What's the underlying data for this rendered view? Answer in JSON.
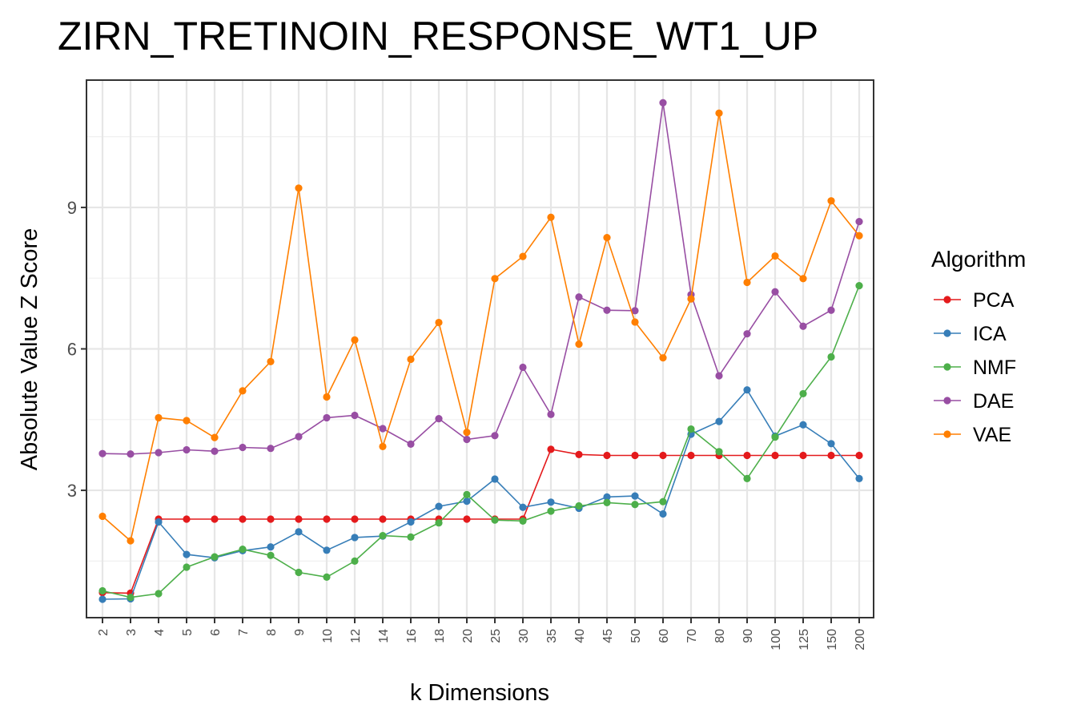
{
  "chart_data": {
    "type": "line",
    "title": "ZIRN_TRETINOIN_RESPONSE_WT1_UP",
    "xlabel": "k Dimensions",
    "ylabel": "Absolute Value Z Score",
    "categories": [
      "2",
      "3",
      "4",
      "5",
      "6",
      "7",
      "8",
      "9",
      "10",
      "12",
      "14",
      "16",
      "18",
      "20",
      "25",
      "30",
      "35",
      "40",
      "45",
      "50",
      "60",
      "70",
      "80",
      "90",
      "100",
      "125",
      "150",
      "200"
    ],
    "ylim": [
      0.3,
      11.7
    ],
    "yticks": [
      3,
      6,
      9
    ],
    "ytick_labels": [
      "3",
      "6",
      "9"
    ],
    "grid": true,
    "legend": {
      "title": "Algorithm",
      "position": "right"
    },
    "series": [
      {
        "name": "PCA",
        "color": "#e41a1c",
        "values": [
          0.83,
          0.82,
          2.39,
          2.39,
          2.39,
          2.39,
          2.39,
          2.39,
          2.39,
          2.39,
          2.39,
          2.39,
          2.39,
          2.39,
          2.39,
          2.39,
          3.87,
          3.76,
          3.74,
          3.74,
          3.74,
          3.74,
          3.74,
          3.74,
          3.74,
          3.74,
          3.74,
          3.74
        ]
      },
      {
        "name": "ICA",
        "color": "#377eb8",
        "values": [
          0.69,
          0.7,
          2.33,
          1.64,
          1.57,
          1.72,
          1.8,
          2.12,
          1.73,
          2.0,
          2.03,
          2.33,
          2.66,
          2.77,
          3.24,
          2.64,
          2.75,
          2.62,
          2.86,
          2.88,
          2.5,
          4.19,
          4.46,
          5.13,
          4.15,
          4.39,
          3.99,
          3.25
        ]
      },
      {
        "name": "NMF",
        "color": "#4daf4a",
        "values": [
          0.87,
          0.73,
          0.81,
          1.37,
          1.59,
          1.75,
          1.62,
          1.26,
          1.16,
          1.5,
          2.04,
          2.01,
          2.31,
          2.91,
          2.37,
          2.35,
          2.56,
          2.67,
          2.74,
          2.7,
          2.76,
          4.3,
          3.82,
          3.25,
          4.13,
          5.05,
          5.83,
          7.34
        ]
      },
      {
        "name": "DAE",
        "color": "#984ea3",
        "values": [
          3.78,
          3.77,
          3.8,
          3.86,
          3.83,
          3.91,
          3.89,
          4.14,
          4.54,
          4.59,
          4.31,
          3.98,
          4.52,
          4.08,
          4.16,
          5.61,
          4.61,
          7.1,
          6.82,
          6.81,
          11.22,
          7.15,
          5.43,
          6.32,
          7.21,
          6.48,
          6.82,
          8.7
        ]
      },
      {
        "name": "VAE",
        "color": "#ff7f00",
        "values": [
          2.45,
          1.93,
          4.54,
          4.48,
          4.12,
          5.11,
          5.73,
          9.41,
          4.98,
          6.19,
          3.93,
          5.78,
          6.56,
          4.23,
          7.49,
          7.96,
          8.79,
          6.1,
          8.36,
          6.57,
          5.81,
          7.06,
          11.0,
          7.41,
          7.97,
          7.49,
          9.14,
          8.4
        ]
      }
    ]
  }
}
